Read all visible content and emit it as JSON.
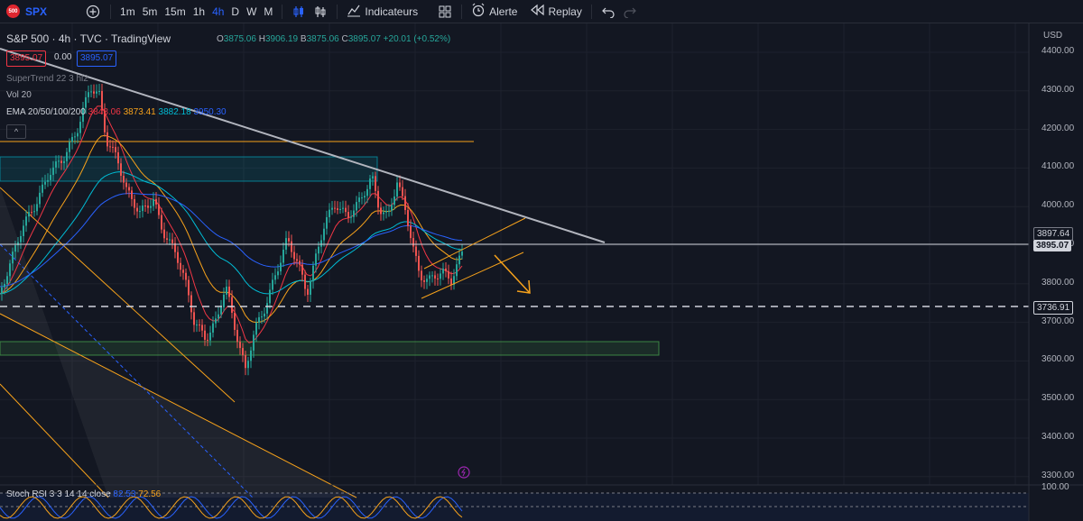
{
  "toolbar": {
    "symbol_badge": "500",
    "symbol": "SPX",
    "timeframes": [
      "1m",
      "5m",
      "15m",
      "1h",
      "4h",
      "D",
      "W",
      "M"
    ],
    "active_timeframe": "4h",
    "indicators_label": "Indicateurs",
    "alert_label": "Alerte",
    "replay_label": "Replay"
  },
  "legend": {
    "title": "S&P 500 · 4h · TVC · TradingView",
    "o_label": "O",
    "o_value": "3875.06",
    "h_label": "H",
    "h_value": "3906.19",
    "b_label": "B",
    "b_value": "3875.06",
    "c_label": "C",
    "c_value": "3895.07",
    "change": "+20.01 (+0.52%)",
    "sell_price": "3895.07",
    "spread": "0.00",
    "buy_price": "3895.07"
  },
  "indicators": {
    "supertrend": "SuperTrend 22 3 hl2",
    "vol": "Vol 20",
    "ema_label": "EMA 20/50/100/200",
    "ema20": "3848.06",
    "ema50": "3873.41",
    "ema100": "3882.18",
    "ema200": "3950.30",
    "stoch_label": "Stoch RSI 3 3 14 14 close",
    "stoch_k": "82.53",
    "stoch_d": "72.56"
  },
  "price_axis": {
    "currency": "USD",
    "ticks": [
      "4400.00",
      "4300.00",
      "4200.00",
      "4100.00",
      "4000.00",
      "3900.00",
      "3800.00",
      "3700.00",
      "3600.00",
      "3500.00",
      "3400.00",
      "3300.00"
    ],
    "tag_resistance": "3897.64",
    "tag_current": "3895.07",
    "tag_support": "3736.91",
    "stoch_tick": "100.00"
  },
  "colors": {
    "background": "#131722",
    "up": "#26a69a",
    "down": "#ef5350",
    "accent": "#2962ff",
    "orange": "#f7a21b",
    "zone_teal": "#00bcd4",
    "zone_green": "#4caf50"
  },
  "icons": [
    "add-symbol-icon",
    "compare-icon",
    "chart-type-icon",
    "indicators-icon",
    "layout-icon",
    "alert-icon",
    "replay-icon",
    "undo-icon",
    "redo-icon"
  ]
}
